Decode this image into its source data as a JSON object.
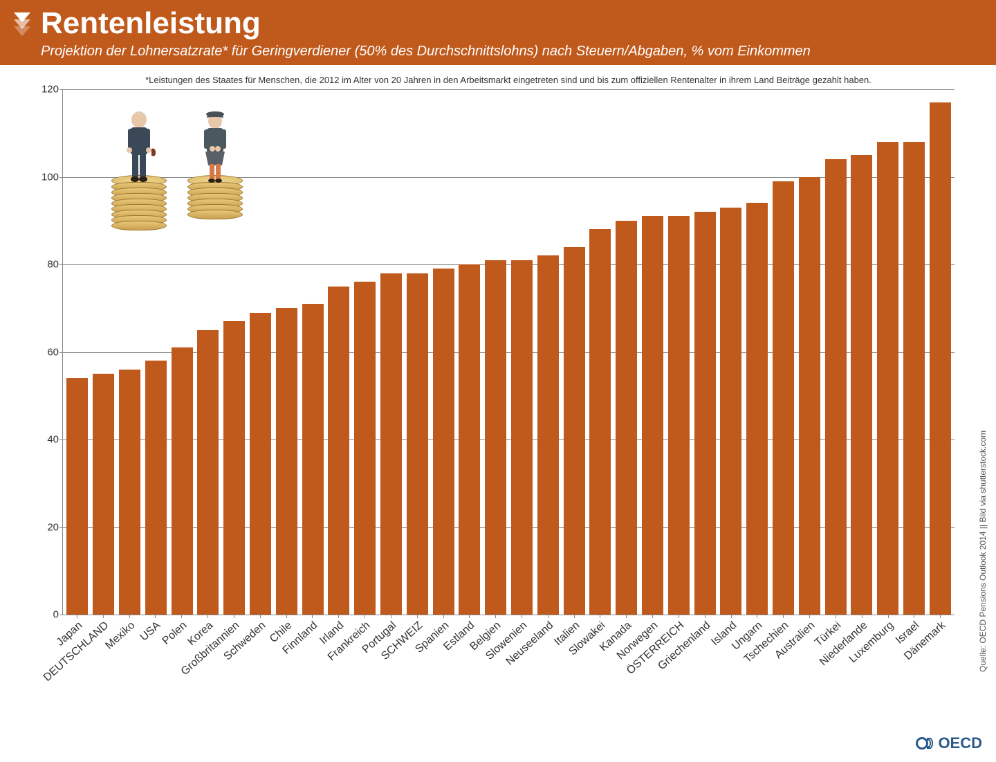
{
  "header": {
    "title": "Rentenleistung",
    "subtitle": "Projektion der Lohnersatzrate* für Geringverdiener (50% des Durchschnittslohns) nach Steuern/Abgaben, % vom Einkommen",
    "background_color": "#c05a1c"
  },
  "chart": {
    "type": "bar",
    "footnote": "*Leistungen des Staates für Menschen, die 2012 im Alter von 20 Jahren in den Arbeitsmarkt eingetreten sind und bis zum offiziellen Rentenalter in ihrem Land Beiträge gezahlt haben.",
    "ylim": [
      0,
      120
    ],
    "ytick_step": 20,
    "yticks": [
      0,
      20,
      40,
      60,
      80,
      100,
      120
    ],
    "bar_color": "#c05a1c",
    "grid_color": "#888888",
    "background_color": "#ffffff",
    "bar_width": 0.82,
    "categories": [
      "Japan",
      "DEUTSCHLAND",
      "Mexiko",
      "USA",
      "Polen",
      "Korea",
      "Großbritannien",
      "Schweden",
      "Chile",
      "Finnland",
      "Irland",
      "Frankreich",
      "Portugal",
      "SCHWEIZ",
      "Spanien",
      "Estland",
      "Belgien",
      "Slowenien",
      "Neuseeland",
      "Italien",
      "Slowakei",
      "Kanada",
      "Norwegen",
      "ÖSTERREICH",
      "Griechenland",
      "Island",
      "Ungarn",
      "Tschechien",
      "Australien",
      "Türkei",
      "Niederlande",
      "Luxemburg",
      "Israel",
      "Dänemark"
    ],
    "values": [
      54,
      55,
      56,
      58,
      61,
      65,
      67,
      69,
      70,
      71,
      75,
      76,
      78,
      78,
      79,
      80,
      81,
      81,
      82,
      84,
      88,
      90,
      91,
      91,
      92,
      93,
      94,
      99,
      100,
      104,
      105,
      108,
      108,
      117
    ],
    "axis_font_size": 15,
    "x_label_rotation": -42
  },
  "attribution": {
    "side_text": "Quelle: OECD Pensions Outlook 2014 || Bild via shutterstock.com",
    "logo_text": "OECD"
  },
  "figure_overlay": {
    "description": "Two elderly figurines sitting on stacks of euro coins",
    "left_stack_coins": 8,
    "right_stack_coins": 6,
    "coin_color_top": "#e8c878",
    "coin_color_side": "#c8a050",
    "coin_border": "#a07830"
  }
}
